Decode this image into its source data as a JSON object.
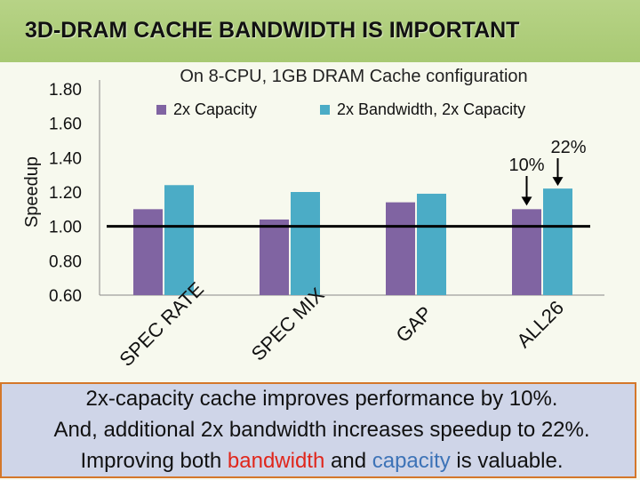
{
  "slide": {
    "title": "3D-DRAM CACHE BANDWIDTH IS IMPORTANT"
  },
  "colors": {
    "series_capacity": "#8064a2",
    "series_bandwidth": "#4bacc6",
    "baseline": "#000000",
    "title_bar": "#a8c973",
    "bottom_box_fill": "#cfd5e8",
    "bottom_box_border": "#d4772a",
    "highlight_bandwidth": "#e0261b",
    "highlight_capacity": "#3d73b7"
  },
  "chart_data": {
    "type": "bar",
    "title": "On 8-CPU, 1GB DRAM Cache configuration",
    "xlabel": "",
    "ylabel": "Speedup",
    "ylim": [
      0.6,
      1.8
    ],
    "yticks": [
      "0.60",
      "0.80",
      "1.00",
      "1.20",
      "1.40",
      "1.60",
      "1.80"
    ],
    "categories": [
      "SPEC RATE",
      "SPEC MIX",
      "GAP",
      "ALL26"
    ],
    "series": [
      {
        "name": "2x Capacity",
        "values": [
          1.1,
          1.04,
          1.14,
          1.1
        ]
      },
      {
        "name": "2x Bandwidth, 2x Capacity",
        "values": [
          1.24,
          1.2,
          1.19,
          1.22
        ]
      }
    ],
    "baseline": 1.0,
    "legend_position": "top",
    "annotations": [
      {
        "text": "10%",
        "target_series": 0,
        "target_category": 3
      },
      {
        "text": "22%",
        "target_series": 1,
        "target_category": 3
      }
    ]
  },
  "summary": {
    "line1": "2x-capacity cache improves performance by 10%.",
    "line2": "And, additional 2x bandwidth increases speedup to 22%.",
    "line3_pre": "Improving both ",
    "line3_bandwidth": "bandwidth",
    "line3_mid": " and ",
    "line3_capacity": "capacity",
    "line3_post": " is valuable."
  }
}
